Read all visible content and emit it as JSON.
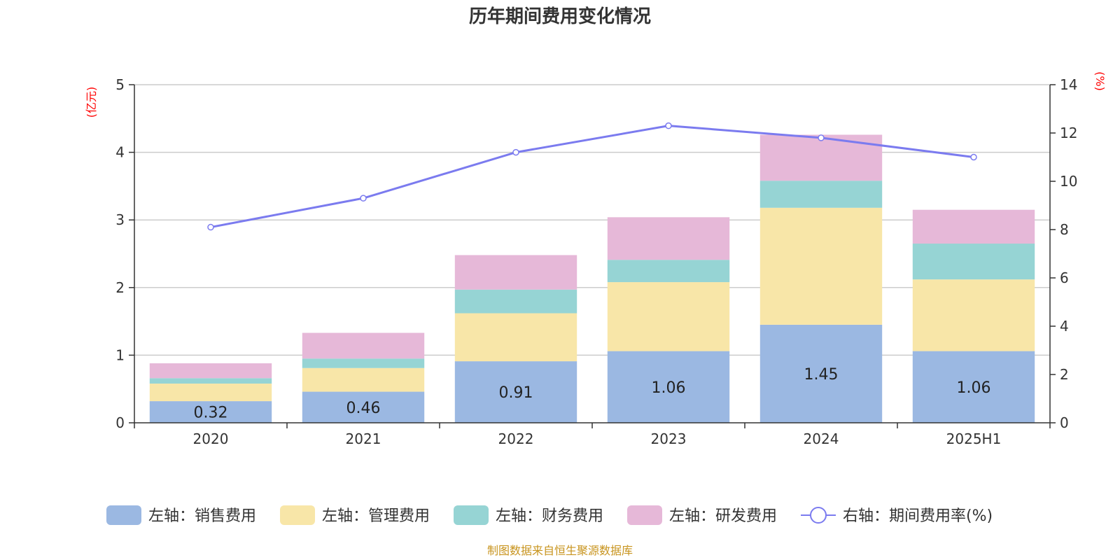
{
  "chart_data": {
    "type": "bar",
    "title": "历年期间费用变化情况",
    "categories": [
      "2020",
      "2021",
      "2022",
      "2023",
      "2024",
      "2025H1"
    ],
    "stacked": true,
    "left_axis": {
      "unit": "(亿元)",
      "ylim": [
        0,
        5
      ],
      "ticks": [
        "0",
        "1",
        "2",
        "3",
        "4",
        "5"
      ]
    },
    "right_axis": {
      "unit": "(%)",
      "ylim": [
        0,
        14
      ],
      "ticks": [
        "0",
        "2",
        "4",
        "6",
        "8",
        "10",
        "12",
        "14"
      ]
    },
    "series": [
      {
        "name": "左轴：销售费用",
        "axis": "left",
        "type": "bar",
        "color": "#9bb8e2",
        "values": [
          0.32,
          0.46,
          0.91,
          1.06,
          1.45,
          1.06
        ],
        "show_labels": true
      },
      {
        "name": "左轴：管理费用",
        "axis": "left",
        "type": "bar",
        "color": "#f8e6a8",
        "values": [
          0.26,
          0.35,
          0.71,
          1.02,
          1.73,
          1.06
        ]
      },
      {
        "name": "左轴：财务费用",
        "axis": "left",
        "type": "bar",
        "color": "#96d4d4",
        "values": [
          0.08,
          0.14,
          0.35,
          0.33,
          0.4,
          0.53
        ]
      },
      {
        "name": "左轴：研发费用",
        "axis": "left",
        "type": "bar",
        "color": "#e6b8d8",
        "values": [
          0.22,
          0.38,
          0.51,
          0.63,
          0.68,
          0.5
        ]
      },
      {
        "name": "右轴：期间费用率(%)",
        "axis": "right",
        "type": "line",
        "color": "#7b7bef",
        "values": [
          8.1,
          9.3,
          11.2,
          12.3,
          11.8,
          11.0
        ]
      }
    ],
    "grid": true,
    "legend_position": "bottom",
    "source_note": "制图数据来自恒生聚源数据库"
  }
}
